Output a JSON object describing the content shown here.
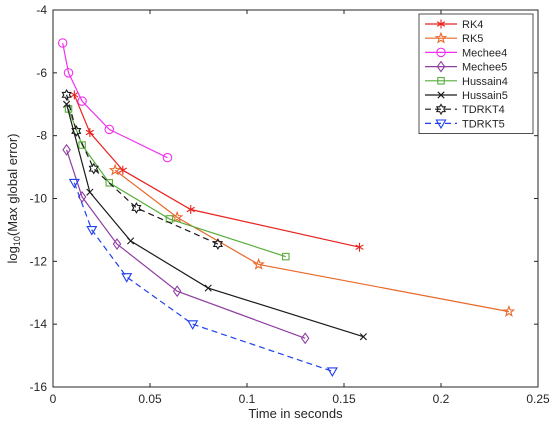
{
  "chart_data": {
    "type": "line",
    "xlabel": "Time in seconds",
    "ylabel_main": "log",
    "ylabel_sub": "10",
    "ylabel_rest": "(Max global error)",
    "xlim": [
      0,
      0.25
    ],
    "ylim": [
      -16,
      -4
    ],
    "x_ticks": [
      0,
      0.05,
      0.1,
      0.15,
      0.2,
      0.25
    ],
    "x_tick_labels": [
      "0",
      "0.05",
      "0.1",
      "0.15",
      "0.2",
      "0.25"
    ],
    "y_ticks": [
      -16,
      -14,
      -12,
      -10,
      -8,
      -6,
      -4
    ],
    "y_tick_labels": [
      "-16",
      "-14",
      "-12",
      "-10",
      "-8",
      "-6",
      "-4"
    ],
    "grid": false,
    "legend_position": "top-right",
    "series": [
      {
        "name": "RK4",
        "color": "#e8231f",
        "marker": "asterisk",
        "dash": "solid",
        "x": [
          0.011,
          0.019,
          0.036,
          0.071,
          0.158
        ],
        "y": [
          -6.7,
          -7.9,
          -9.1,
          -10.35,
          -11.55
        ]
      },
      {
        "name": "RK5",
        "color": "#e8682a",
        "marker": "star",
        "dash": "solid",
        "x": [
          0.032,
          0.064,
          0.106,
          0.235
        ],
        "y": [
          -9.1,
          -10.6,
          -12.1,
          -13.6
        ]
      },
      {
        "name": "Mechee4",
        "color": "#f032f0",
        "marker": "circle",
        "dash": "solid",
        "x": [
          0.005,
          0.008,
          0.015,
          0.029,
          0.059
        ],
        "y": [
          -5.05,
          -6.0,
          -6.9,
          -7.8,
          -8.7
        ]
      },
      {
        "name": "Mechee5",
        "color": "#8e3ea0",
        "marker": "diamond",
        "dash": "solid",
        "x": [
          0.007,
          0.015,
          0.033,
          0.064,
          0.13
        ],
        "y": [
          -8.45,
          -9.95,
          -11.45,
          -12.95,
          -14.45
        ]
      },
      {
        "name": "Hussain4",
        "color": "#57ad3b",
        "marker": "square",
        "dash": "solid",
        "x": [
          0.008,
          0.015,
          0.029,
          0.06,
          0.12
        ],
        "y": [
          -7.15,
          -8.3,
          -9.5,
          -10.65,
          -11.85
        ]
      },
      {
        "name": "Hussain5",
        "color": "#1a1a1a",
        "marker": "x",
        "dash": "solid",
        "x": [
          0.007,
          0.019,
          0.04,
          0.08,
          0.16
        ],
        "y": [
          -7.0,
          -9.8,
          -11.35,
          -12.85,
          -14.4
        ]
      },
      {
        "name": "TDRKT4",
        "color": "#1a1a1a",
        "marker": "hexagram",
        "dash": "dashed",
        "x": [
          0.007,
          0.012,
          0.021,
          0.043,
          0.085
        ],
        "y": [
          -6.7,
          -7.85,
          -9.05,
          -10.3,
          -11.45
        ]
      },
      {
        "name": "TDRKT5",
        "color": "#1f3ff0",
        "marker": "triangle-down",
        "dash": "dashed",
        "x": [
          0.011,
          0.02,
          0.038,
          0.072,
          0.144
        ],
        "y": [
          -9.5,
          -11.0,
          -12.5,
          -14.0,
          -15.5
        ]
      }
    ]
  }
}
